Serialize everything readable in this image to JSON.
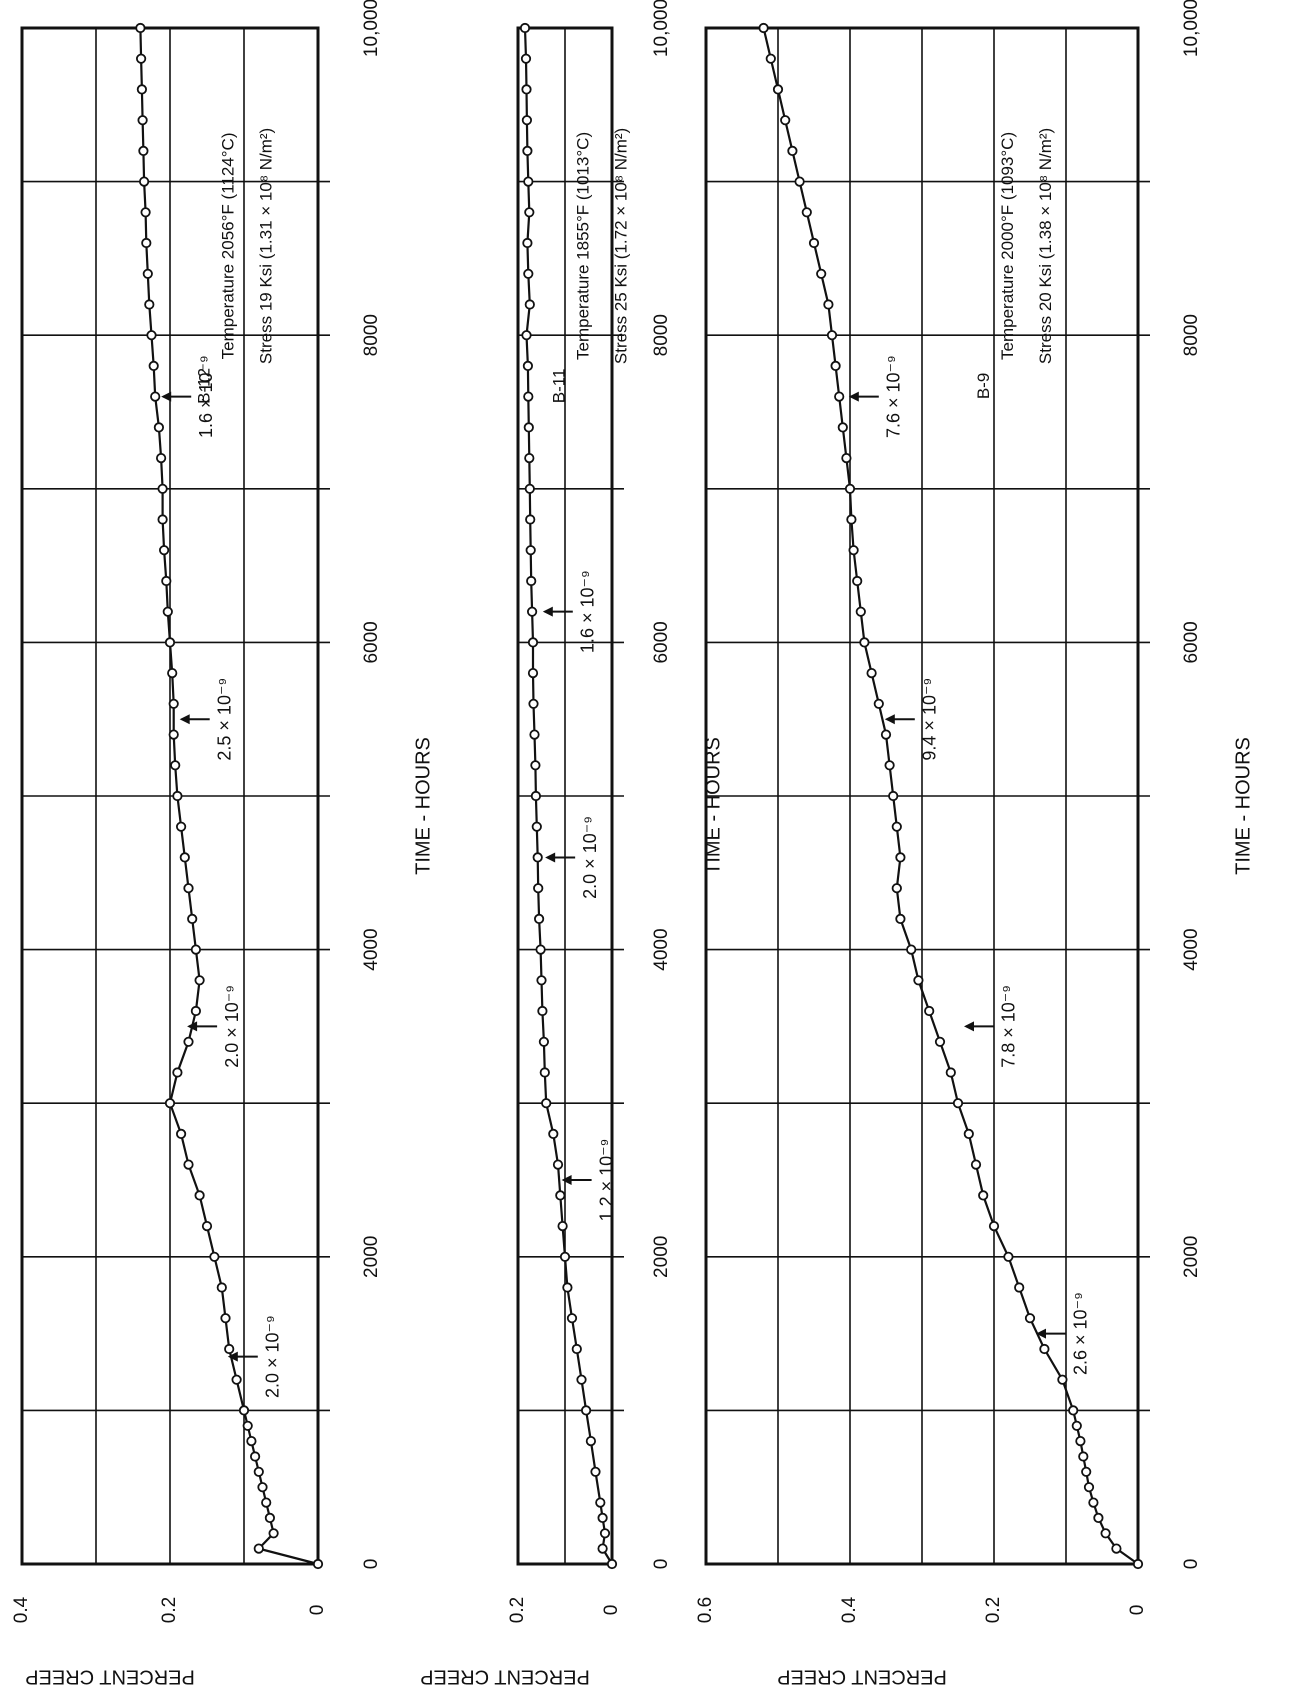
{
  "chart_data": [
    {
      "type": "line",
      "specimen": "B-12",
      "xlabel": "TIME - HOURS",
      "ylabel": "PERCENT CREEP",
      "xlim": [
        0,
        10000
      ],
      "ylim": [
        0,
        0.4
      ],
      "x_ticks": [
        "0",
        "2000",
        "4000",
        "6000",
        "8000",
        "10,000"
      ],
      "y_ticks": [
        "0",
        "0.2",
        "0.4"
      ],
      "info": [
        "Temperature 2056°F (1124°C)",
        "Stress 19 Ksi (1.31 × 10⁸ N/m²)"
      ],
      "annotations": [
        {
          "text": "2.0 × 10⁻⁹",
          "x": 1350,
          "y": 0.13
        },
        {
          "text": "2.0 × 10⁻⁹",
          "x": 3500,
          "y": 0.185
        },
        {
          "text": "2.5 × 10⁻⁹",
          "x": 5500,
          "y": 0.195
        },
        {
          "text": "1.6 × 10⁻⁹",
          "x": 7600,
          "y": 0.22
        }
      ],
      "x": [
        0,
        100,
        200,
        300,
        400,
        500,
        600,
        700,
        800,
        900,
        1000,
        1200,
        1400,
        1600,
        1800,
        2000,
        2200,
        2400,
        2600,
        2800,
        3000,
        3200,
        3400,
        3600,
        3800,
        4000,
        4200,
        4400,
        4600,
        4800,
        5000,
        5200,
        5400,
        5600,
        5800,
        6000,
        6200,
        6400,
        6600,
        6800,
        7000,
        7200,
        7400,
        7600,
        7800,
        8000,
        8200,
        8400,
        8600,
        8800,
        9000,
        9200,
        9400,
        9600,
        9800,
        10000
      ],
      "y": [
        0,
        0.08,
        0.06,
        0.065,
        0.07,
        0.075,
        0.08,
        0.085,
        0.09,
        0.095,
        0.1,
        0.11,
        0.12,
        0.125,
        0.13,
        0.14,
        0.15,
        0.16,
        0.175,
        0.185,
        0.2,
        0.19,
        0.175,
        0.165,
        0.16,
        0.165,
        0.17,
        0.175,
        0.18,
        0.185,
        0.19,
        0.193,
        0.195,
        0.195,
        0.197,
        0.2,
        0.203,
        0.205,
        0.208,
        0.21,
        0.21,
        0.212,
        0.215,
        0.22,
        0.222,
        0.225,
        0.228,
        0.23,
        0.232,
        0.233,
        0.235,
        0.236,
        0.237,
        0.238,
        0.239,
        0.24
      ]
    },
    {
      "type": "line",
      "specimen": "B-11",
      "xlabel": "TIME - HOURS",
      "ylabel": "PERCENT CREEP",
      "xlim": [
        0,
        10000
      ],
      "ylim": [
        0,
        0.2
      ],
      "x_ticks": [
        "0",
        "2000",
        "4000",
        "6000",
        "8000",
        "10,000"
      ],
      "y_ticks": [
        "0",
        "0.2"
      ],
      "info": [
        "Temperature 1855°F (1013°C)",
        "Stress 25 Ksi (1.72 × 10⁸ N/m²)"
      ],
      "annotations": [
        {
          "text": "1.2 × 10⁻⁹",
          "x": 2500,
          "y": 0.12
        },
        {
          "text": "2.0 × 10⁻⁹",
          "x": 4600,
          "y": 0.155
        },
        {
          "text": "1.6 × 10⁻⁹",
          "x": 6200,
          "y": 0.16
        }
      ],
      "x": [
        0,
        100,
        200,
        300,
        400,
        600,
        800,
        1000,
        1200,
        1400,
        1600,
        1800,
        2000,
        2200,
        2400,
        2600,
        2800,
        3000,
        3200,
        3400,
        3600,
        3800,
        4000,
        4200,
        4400,
        4600,
        4800,
        5000,
        5200,
        5400,
        5600,
        5800,
        6000,
        6200,
        6400,
        6600,
        6800,
        7000,
        7200,
        7400,
        7600,
        7800,
        8000,
        8200,
        8400,
        8600,
        8800,
        9000,
        9200,
        9400,
        9600,
        9800,
        10000
      ],
      "y": [
        0,
        0.02,
        0.015,
        0.02,
        0.025,
        0.035,
        0.045,
        0.055,
        0.065,
        0.075,
        0.085,
        0.095,
        0.1,
        0.105,
        0.11,
        0.115,
        0.125,
        0.14,
        0.143,
        0.145,
        0.148,
        0.15,
        0.152,
        0.155,
        0.157,
        0.158,
        0.16,
        0.162,
        0.163,
        0.165,
        0.167,
        0.168,
        0.168,
        0.17,
        0.172,
        0.173,
        0.174,
        0.175,
        0.176,
        0.177,
        0.178,
        0.179,
        0.182,
        0.175,
        0.178,
        0.18,
        0.176,
        0.178,
        0.18,
        0.181,
        0.182,
        0.183,
        0.185
      ]
    },
    {
      "type": "line",
      "specimen": "B-9",
      "xlabel": "TIME - HOURS",
      "ylabel": "PERCENT CREEP",
      "xlim": [
        0,
        10000
      ],
      "ylim": [
        0,
        0.6
      ],
      "x_ticks": [
        "0",
        "2000",
        "4000",
        "6000",
        "8000",
        "10,000"
      ],
      "y_ticks": [
        "0",
        "0.2",
        "0.4",
        "0.6"
      ],
      "info": [
        "Temperature 2000°F (1093°C)",
        "Stress 20 Ksi (1.38 × 10⁸ N/m²)"
      ],
      "annotations": [
        {
          "text": "2.6 × 10⁻⁹",
          "x": 1500,
          "y": 0.15
        },
        {
          "text": "7.8 × 10⁻⁹",
          "x": 3500,
          "y": 0.25
        },
        {
          "text": "9.4 × 10⁻⁹",
          "x": 5500,
          "y": 0.36
        },
        {
          "text": "7.6 × 10⁻⁹",
          "x": 7600,
          "y": 0.41
        }
      ],
      "x": [
        0,
        100,
        200,
        300,
        400,
        500,
        600,
        700,
        800,
        900,
        1000,
        1200,
        1400,
        1600,
        1800,
        2000,
        2200,
        2400,
        2600,
        2800,
        3000,
        3200,
        3400,
        3600,
        3800,
        4000,
        4200,
        4400,
        4600,
        4800,
        5000,
        5200,
        5400,
        5600,
        5800,
        6000,
        6200,
        6400,
        6600,
        6800,
        7000,
        7200,
        7400,
        7600,
        7800,
        8000,
        8200,
        8400,
        8600,
        8800,
        9000,
        9200,
        9400,
        9600,
        9800,
        10000
      ],
      "y": [
        0,
        0.03,
        0.045,
        0.055,
        0.062,
        0.068,
        0.072,
        0.076,
        0.08,
        0.085,
        0.09,
        0.105,
        0.13,
        0.15,
        0.165,
        0.18,
        0.2,
        0.215,
        0.225,
        0.235,
        0.25,
        0.26,
        0.275,
        0.29,
        0.305,
        0.315,
        0.33,
        0.335,
        0.33,
        0.335,
        0.34,
        0.345,
        0.35,
        0.36,
        0.37,
        0.38,
        0.385,
        0.39,
        0.395,
        0.398,
        0.4,
        0.405,
        0.41,
        0.415,
        0.42,
        0.425,
        0.43,
        0.44,
        0.45,
        0.46,
        0.47,
        0.48,
        0.49,
        0.5,
        0.51,
        0.52
      ]
    }
  ]
}
